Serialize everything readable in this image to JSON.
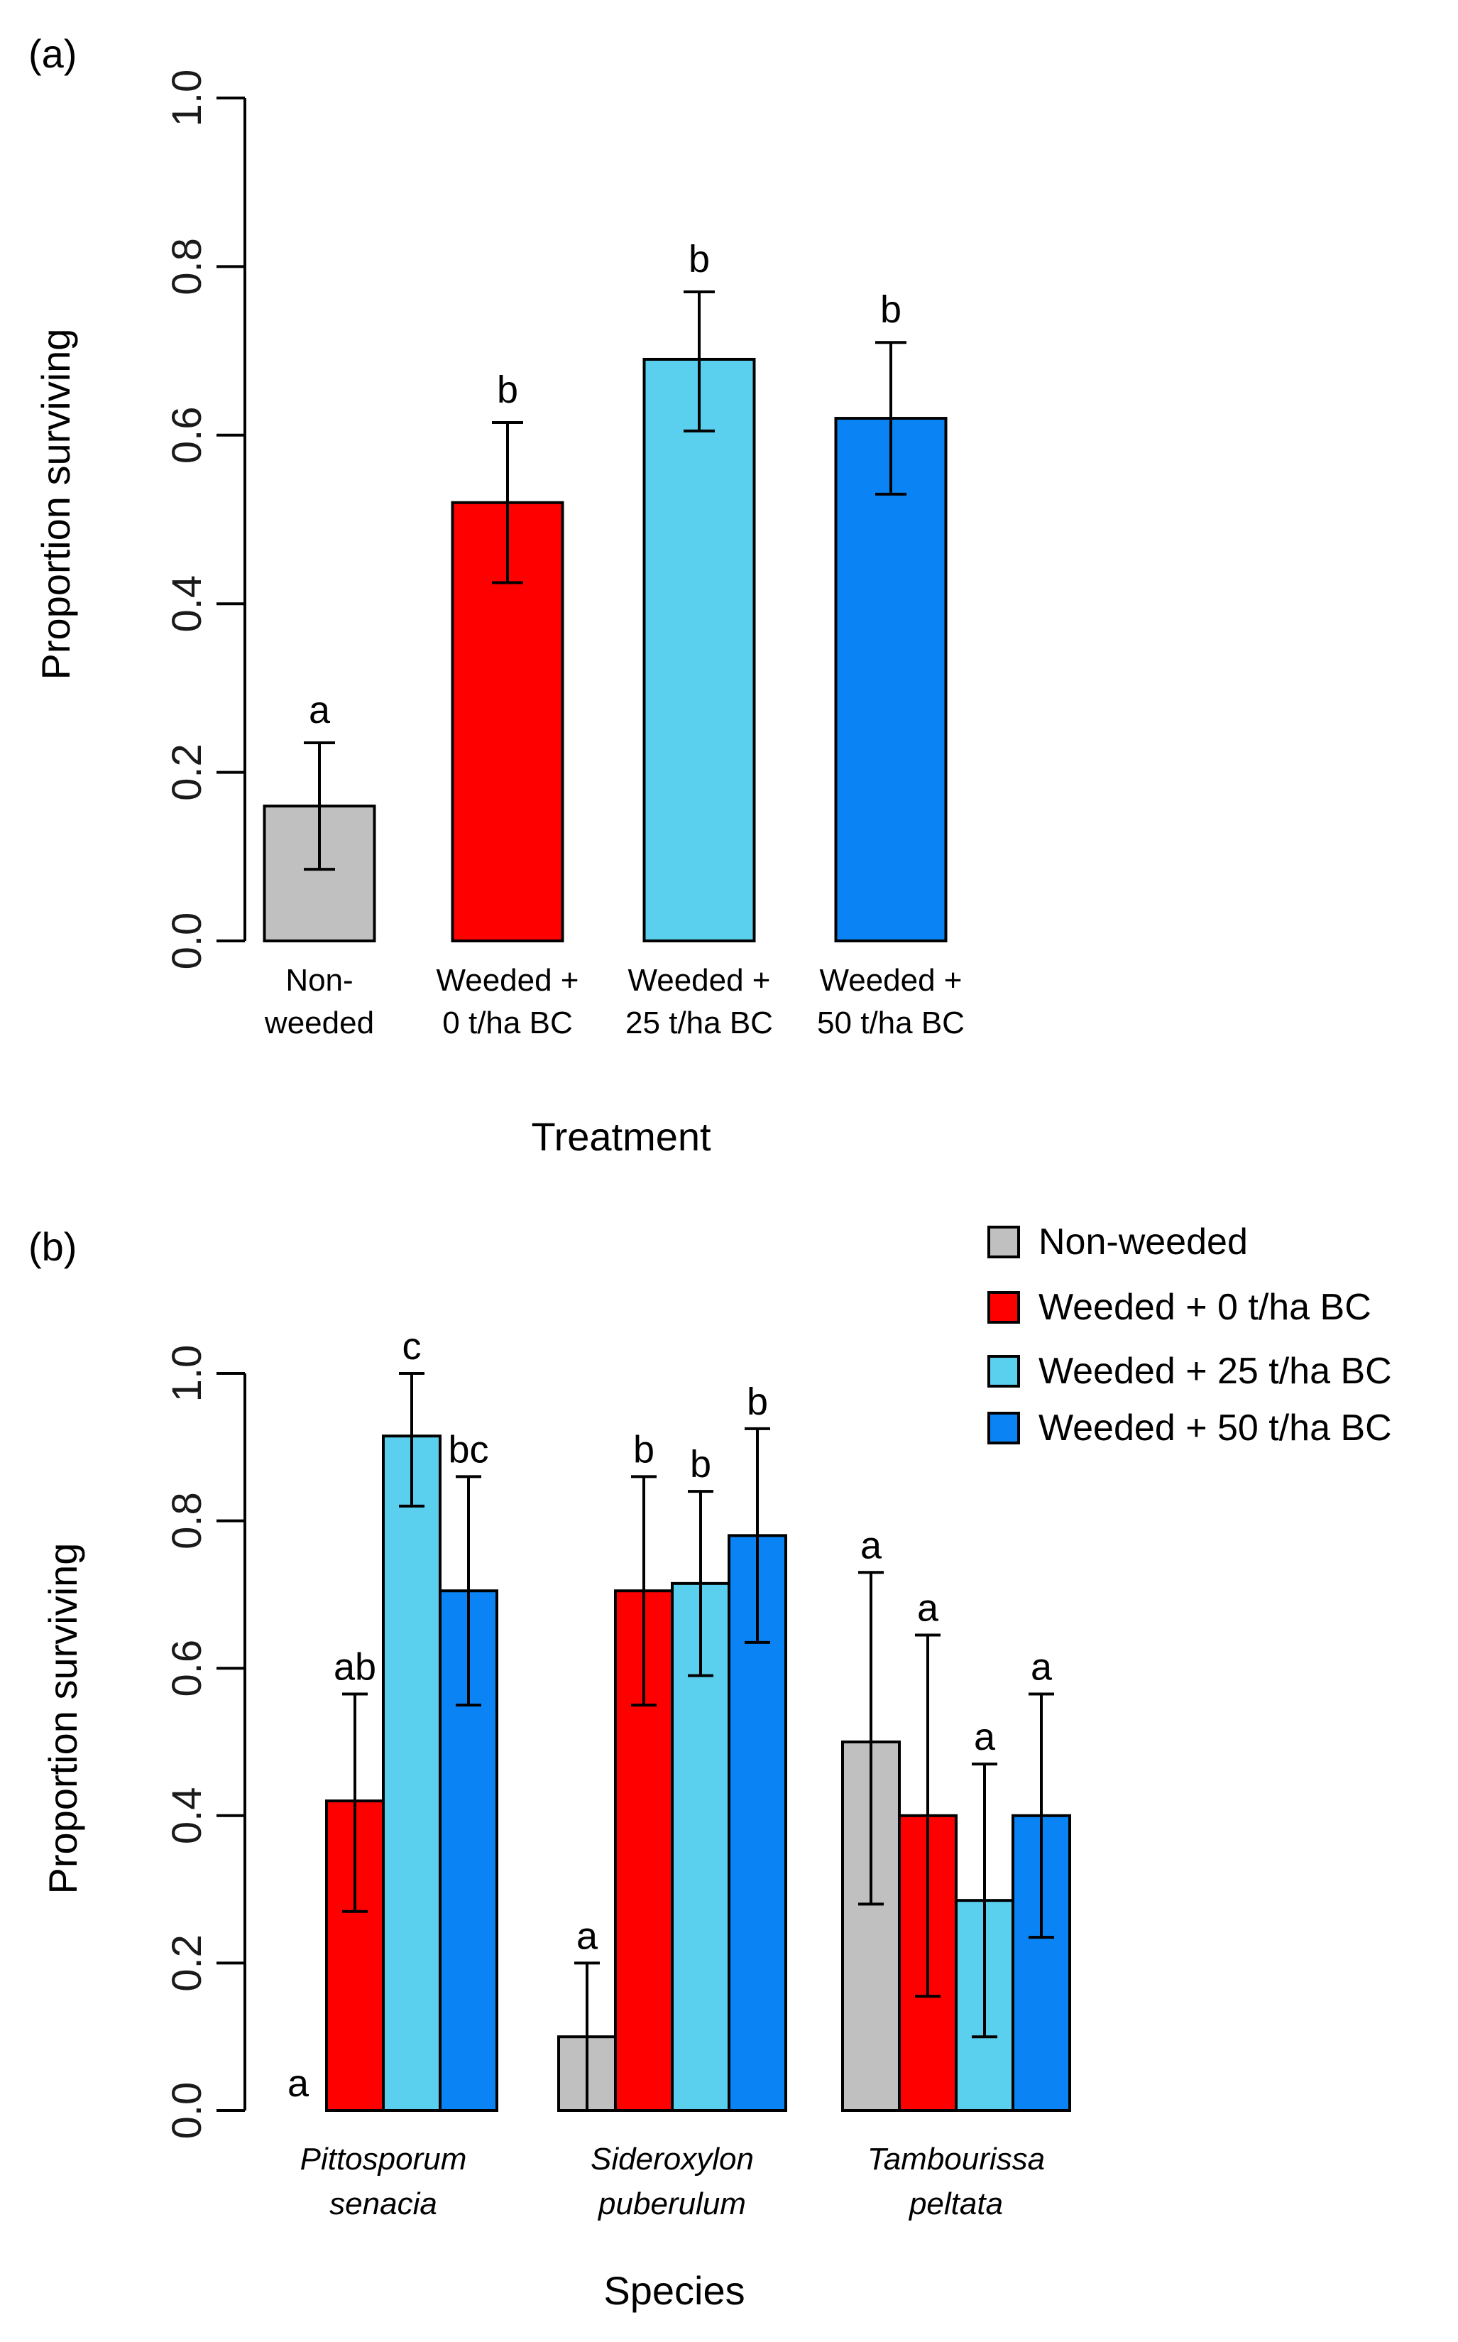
{
  "colors": {
    "non_weeded": "#c0c0c0",
    "weeded_0": "#ff0000",
    "weeded_25": "#5bcfee",
    "weeded_50": "#0a84f5"
  },
  "chart_data": [
    {
      "panel": "(a)",
      "type": "bar",
      "ylabel": "Proportion surviving",
      "xlabel": "Treatment",
      "ylim": [
        0,
        1.0
      ],
      "yticks": [
        "0.0",
        "0.2",
        "0.4",
        "0.6",
        "0.8",
        "1.0"
      ],
      "grid": false,
      "categories": [
        {
          "line1": "Non-",
          "line2": "weeded"
        },
        {
          "line1": "Weeded +",
          "line2": "0 t/ha BC"
        },
        {
          "line1": "Weeded +",
          "line2": "25 t/ha BC"
        },
        {
          "line1": "Weeded +",
          "line2": "50 t/ha BC"
        }
      ],
      "values": [
        0.16,
        0.52,
        0.69,
        0.62
      ],
      "err_low": [
        0.085,
        0.425,
        0.605,
        0.53
      ],
      "err_high": [
        0.235,
        0.615,
        0.77,
        0.71
      ],
      "significance": [
        "a",
        "b",
        "b",
        "b"
      ],
      "color_keys": [
        "non_weeded",
        "weeded_0",
        "weeded_25",
        "weeded_50"
      ]
    },
    {
      "panel": "(b)",
      "type": "bar",
      "ylabel": "Proportion surviving",
      "xlabel": "Species",
      "ylim": [
        0,
        1.0
      ],
      "yticks": [
        "0.0",
        "0.2",
        "0.4",
        "0.6",
        "0.8",
        "1.0"
      ],
      "grid": false,
      "legend_position": "top-right",
      "categories": [
        {
          "line1": "Pittosporum",
          "line2": "senacia"
        },
        {
          "line1": "Sideroxylon",
          "line2": "puberulum"
        },
        {
          "line1": "Tambourissa",
          "line2": "peltata"
        }
      ],
      "series": [
        {
          "name": "Non-weeded",
          "color_key": "non_weeded",
          "values": [
            0.0,
            0.1,
            0.5
          ],
          "err_low": [
            null,
            0.0,
            0.28
          ],
          "err_high": [
            null,
            0.2,
            0.73
          ],
          "significance": [
            "a",
            "a",
            "a"
          ]
        },
        {
          "name": "Weeded + 0 t/ha BC",
          "color_key": "weeded_0",
          "values": [
            0.42,
            0.705,
            0.4
          ],
          "err_low": [
            0.27,
            0.55,
            0.155
          ],
          "err_high": [
            0.565,
            0.86,
            0.645
          ],
          "significance": [
            "ab",
            "b",
            "a"
          ]
        },
        {
          "name": "Weeded + 25 t/ha BC",
          "color_key": "weeded_25",
          "values": [
            0.915,
            0.715,
            0.285
          ],
          "err_low": [
            0.82,
            0.59,
            0.1
          ],
          "err_high": [
            1.0,
            0.84,
            0.47
          ],
          "significance": [
            "c",
            "b",
            "a"
          ]
        },
        {
          "name": "Weeded + 50 t/ha BC",
          "color_key": "weeded_50",
          "values": [
            0.705,
            0.78,
            0.4
          ],
          "err_low": [
            0.55,
            0.635,
            0.235
          ],
          "err_high": [
            0.86,
            0.925,
            0.565
          ],
          "significance": [
            "bc",
            "b",
            "a"
          ]
        }
      ]
    }
  ]
}
